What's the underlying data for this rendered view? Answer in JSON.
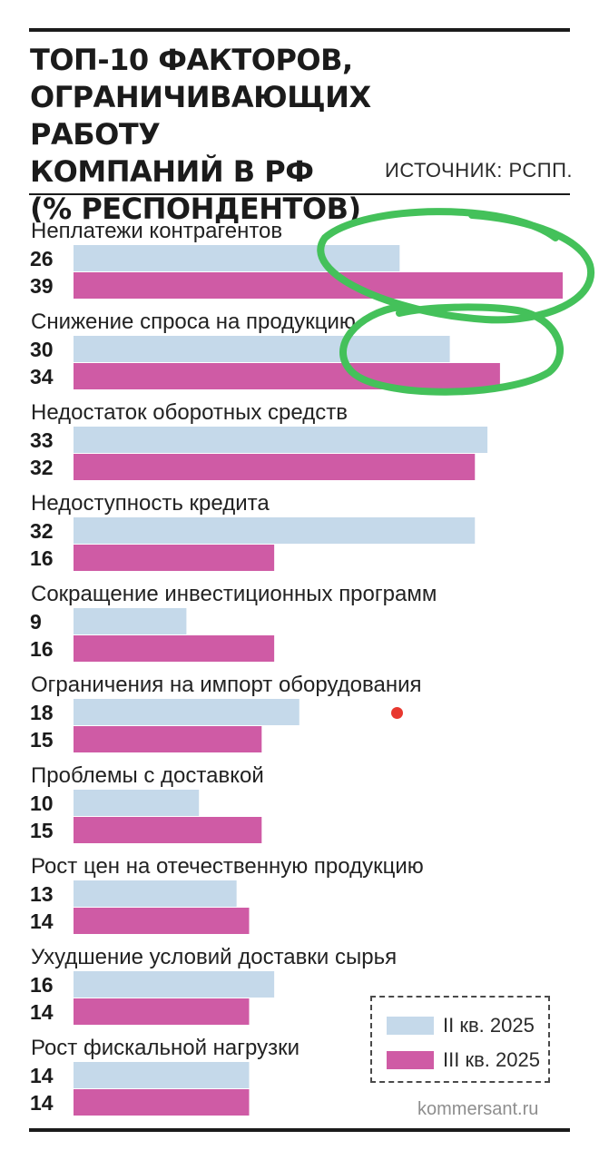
{
  "chart_data": {
    "type": "bar",
    "orientation": "horizontal",
    "title": "ТОП-10 ФАКТОРОВ,\nОГРАНИЧИВАЮЩИХ РАБОТУ\nКОМПАНИЙ В РФ\n(% РЕСПОНДЕНТОВ)",
    "source": "ИСТОЧНИК: РСПП.",
    "categories": [
      "Неплатежи контрагентов",
      "Снижение спроса на продукцию",
      "Недостаток оборотных средств",
      "Недоступность кредита",
      "Сокращение инвестиционных программ",
      "Ограничения на импорт оборудования",
      "Проблемы с доставкой",
      "Рост цен на отечественную продукцию",
      "Ухудшение условий доставки сырья",
      "Рост фискальной нагрузки"
    ],
    "series": [
      {
        "name": "II кв. 2025",
        "color": "#c5d9ea",
        "values": [
          26,
          30,
          33,
          32,
          9,
          18,
          10,
          13,
          16,
          14
        ]
      },
      {
        "name": "III кв. 2025",
        "color": "#cf5ba5",
        "values": [
          39,
          34,
          32,
          16,
          16,
          15,
          15,
          14,
          14,
          14
        ]
      }
    ],
    "xlim": [
      0,
      39
    ],
    "grid": false,
    "legend_position": "bottom-right",
    "credit": "kommersant.ru",
    "annotations": {
      "highlight_color": "#44c15a",
      "highlighted_categories": [
        "Неплатежи контрагентов",
        "Снижение спроса на продукцию"
      ],
      "marker_color": "#e8382f"
    }
  }
}
